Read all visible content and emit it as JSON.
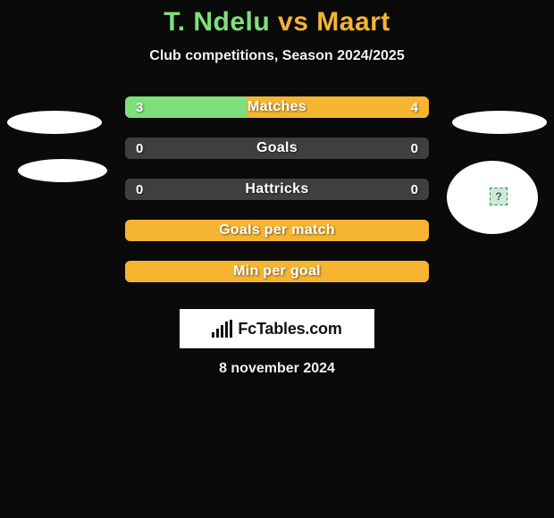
{
  "colors": {
    "background": "#0a0a0a",
    "title_left": "#7fe07a",
    "title_right": "#f5b531",
    "bar_track": "#f5b531",
    "bar_fill_left": "#7fe07a",
    "bar_fill_empty": "#3f3f3f",
    "text": "#ffffff"
  },
  "title": {
    "left": "T. Ndelu",
    "vs": " vs ",
    "right": "Maart"
  },
  "subtitle": "Club competitions, Season 2024/2025",
  "rows": [
    {
      "label": "Matches",
      "left": "3",
      "right": "4",
      "left_pct": 40,
      "track": "bar_track",
      "fill": "bar_fill_left"
    },
    {
      "label": "Goals",
      "left": "0",
      "right": "0",
      "left_pct": 100,
      "track": "bar_fill_empty",
      "fill": "bar_fill_empty"
    },
    {
      "label": "Hattricks",
      "left": "0",
      "right": "0",
      "left_pct": 100,
      "track": "bar_fill_empty",
      "fill": "bar_fill_empty"
    },
    {
      "label": "Goals per match",
      "left": "",
      "right": "",
      "left_pct": 100,
      "track": "bar_track",
      "fill": "bar_track"
    },
    {
      "label": "Min per goal",
      "left": "",
      "right": "",
      "left_pct": 100,
      "track": "bar_track",
      "fill": "bar_track"
    }
  ],
  "logo": {
    "text": "FcTables.com"
  },
  "date": "8 november 2024",
  "avatar_placeholder_glyph": "?"
}
